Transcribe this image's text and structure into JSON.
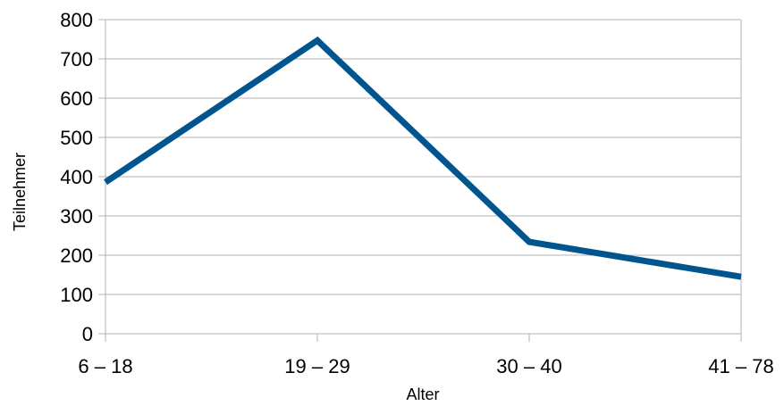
{
  "chart_data": {
    "type": "line",
    "title": "",
    "xlabel": "Alter",
    "ylabel": "Teilnehmer",
    "categories": [
      "6 – 18",
      "19 – 29",
      "30 – 40",
      "41 – 78"
    ],
    "series": [
      {
        "values": [
          386,
          747,
          234,
          145
        ]
      }
    ],
    "ylim": [
      0,
      800
    ],
    "yticks": [
      "0",
      "100",
      "200",
      "300",
      "400",
      "500",
      "600",
      "700",
      "800"
    ],
    "grid": true,
    "legend": "none",
    "colors": {
      "line": "#00558F",
      "grid": "#B3B3B3",
      "axis": "#B3B3B3"
    }
  }
}
